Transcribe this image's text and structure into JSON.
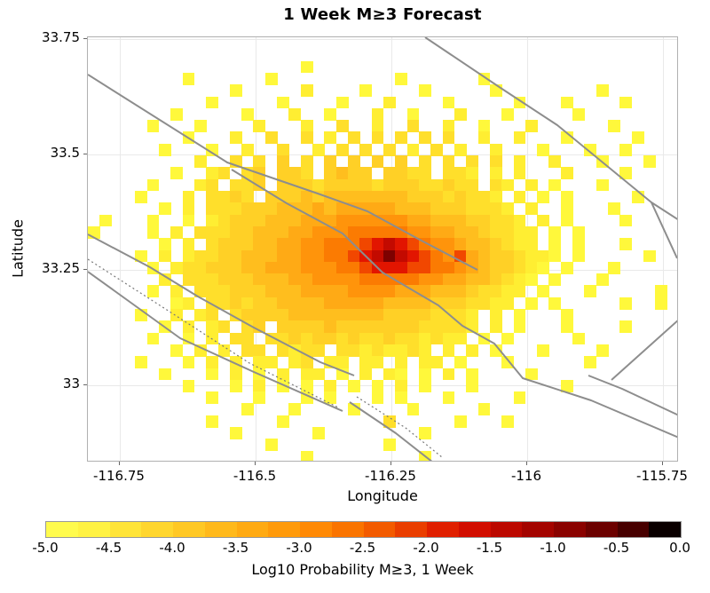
{
  "chart_data": {
    "type": "heatmap",
    "title": "1 Week M≥3 Forecast",
    "xlabel": "Longitude",
    "ylabel": "Latitude",
    "xlim": [
      -116.81,
      -115.72
    ],
    "ylim": [
      32.83,
      33.75
    ],
    "grid_on": true,
    "x_ticks": [
      {
        "label": "-116.75",
        "px": 36
      },
      {
        "label": "-116.5",
        "px": 189
      },
      {
        "label": "-116.25",
        "px": 342
      },
      {
        "label": "-116",
        "px": 495
      },
      {
        "label": "-115.75",
        "px": 648
      }
    ],
    "y_ticks": [
      {
        "label": "33.75",
        "px": 2
      },
      {
        "label": "33.5",
        "px": 132
      },
      {
        "label": "33.25",
        "px": 262
      },
      {
        "label": "33",
        "px": 392
      }
    ],
    "colorbar": {
      "label": "Log10 Probability M≥3, 1 Week",
      "range": [
        -5,
        0
      ],
      "tick_labels": [
        "-5.0",
        "-4.5",
        "-4.0",
        "-3.5",
        "-3.0",
        "-2.5",
        "-2.0",
        "-1.5",
        "-1.0",
        "-0.5",
        "0.0"
      ],
      "segment_colors": [
        "#FFFB4D",
        "#FFF243",
        "#FFE438",
        "#FFD62E",
        "#FFC824",
        "#FFB91B",
        "#FFAA12",
        "#FF9A0A",
        "#FF8904",
        "#FA7400",
        "#F35B00",
        "#EA3E00",
        "#E01F00",
        "#D20D00",
        "#BC0800",
        "#A40400",
        "#8A0200",
        "#6C0100",
        "#470000",
        "#0A0000"
      ]
    },
    "heatmap": {
      "ncols": 50,
      "nrows": 36,
      "note": "Each row string has 50 chars; '.' = no forecast cell (white); letters map to log10 probability buckets via palette.",
      "palette": {
        "a": {
          "value": -4.9,
          "color": "#FFF83B"
        },
        "b": {
          "value": -4.6,
          "color": "#FFEE32"
        },
        "c": {
          "value": -4.3,
          "color": "#FFDF2B"
        },
        "d": {
          "value": -4.0,
          "color": "#FFD026"
        },
        "e": {
          "value": -3.7,
          "color": "#FFBE1E"
        },
        "f": {
          "value": -3.4,
          "color": "#FFAA15"
        },
        "g": {
          "value": -3.1,
          "color": "#FF940B"
        },
        "h": {
          "value": -2.8,
          "color": "#FB7B02"
        },
        "i": {
          "value": -2.5,
          "color": "#F14700"
        },
        "j": {
          "value": -2.2,
          "color": "#E21500"
        },
        "k": {
          "value": -1.9,
          "color": "#C30A00"
        },
        "m": {
          "value": -1.3,
          "color": "#7E0100"
        }
      },
      "rows": [
        "..................................................",
        "..................................................",
        "..................a...............................",
        "........a......a..........a......a................",
        "............a.....b....a....a.....a........a......",
        "..........a.....a....a...b....a.....a...a....a....",
        ".......a.....a...b..a...b..a...b...a.....a........",
        ".....a...a....b...b..c..b..c..b..a...b......a.....",
        "........a...b..c..c.b.c.c.c.c.c..b..b...a.....a...",
        "......a...a..b..c..b.c.c.c.b.c.b..b...a...a..a....",
        ".........b..c.c.d.c.d.d.d.d.c.c.c.c.b..b...a...a..",
        ".......a..bc.cd.ddc.dedd.ddcc.ccb.b.b...b....a....",
        ".....a...bc.ccd.dddcddddcdddccdcc.cb.b.a...a......",
        "....a...b.ccdc.dddedeeeeeeedddcdccb.b.a.a.....a...",
        "......a.b.cccdddeeefefffffeeedddcccb.b..a...a.....",
        ".a...a..a.bcdddeeefffggggggffeeeddccb.b.a....a....",
        "a....a.b.cccddeeeffggghhhhhggffeedccbb.a.a........",
        "......a.b.cdddeeffgghhhijkjihggfeedcbb.a.a...a....",
        "....a.b.bccddeeeffgghhijkmkjihgifeddcbba.a.....a..",
        ".....a.bccdddeefffggghhijjjiihhgfeddcba.a...a.....",
        "......b.cccdddeeeffgggghhhhhggffeedcba.a...a......",
        ".....a.b.cccdddeeeffffggggfffeeedccbb.a...a.....a.",
        ".......ab.ccdcddeeeefffffeeeedddccbb.a.a.....a..a.",
        "....a..b.bc.cddddeeeeeeeeddddcccb.b.a...a.........",
        "......a.b.bc.cd.ddddedddddddccccb.b.a...a....a....",
        ".....a..a.b.cc.ccdcddcdccdccbcbb.a.a.....a........",
        ".......a.b.b.cc.cbcc.ccbcbbcb.b.b.a...a....a......",
        "....a...a.b.b.bb.bc.bb.bb.b.bb.a...a......a.......",
        "......a...a.b.a.b.bb.a.b.ba.a.b.a....a............",
        "........a...a.b.a.a.b.a.a.b.a...a.......a.........",
        "..........a...a...a.a...a.a...a.....a.............",
        ".............a...a....a....a.....a................",
        "..........a.....a........c.....a...a..............",
        "............a......a........a.....................",
        "...............a.........a........................",
        "..................a.........a....................."
      ]
    },
    "fault_lines": [
      {
        "name": "fault-ne-long",
        "style": "solid",
        "points": [
          [
            380,
            0
          ],
          [
            465,
            57
          ],
          [
            529,
            99
          ],
          [
            635,
            186
          ],
          [
            666,
            206
          ]
        ]
      },
      {
        "name": "fault-ne-branch",
        "style": "solid",
        "points": [
          [
            635,
            186
          ],
          [
            664,
            249
          ]
        ]
      },
      {
        "name": "fault-central-upper",
        "style": "solid",
        "points": [
          [
            0,
            42
          ],
          [
            157,
            141
          ],
          [
            259,
            176
          ],
          [
            315,
            196
          ],
          [
            372,
            227
          ],
          [
            439,
            262
          ]
        ]
      },
      {
        "name": "fault-central-lower",
        "style": "solid",
        "points": [
          [
            162,
            149
          ],
          [
            224,
            187
          ],
          [
            287,
            221
          ],
          [
            332,
            265
          ],
          [
            395,
            302
          ],
          [
            422,
            325
          ],
          [
            458,
            345
          ],
          [
            490,
            384
          ],
          [
            567,
            409
          ],
          [
            666,
            451
          ]
        ]
      },
      {
        "name": "fault-short-right",
        "style": "solid",
        "points": [
          [
            564,
            381
          ],
          [
            602,
            396
          ],
          [
            666,
            426
          ]
        ]
      },
      {
        "name": "fault-right-oblique",
        "style": "solid",
        "points": [
          [
            590,
            386
          ],
          [
            667,
            317
          ]
        ]
      },
      {
        "name": "fault-sw-upper",
        "style": "solid",
        "points": [
          [
            0,
            222
          ],
          [
            70,
            259
          ],
          [
            124,
            292
          ],
          [
            187,
            327
          ],
          [
            262,
            366
          ],
          [
            300,
            381
          ]
        ]
      },
      {
        "name": "fault-sw-lower",
        "style": "solid",
        "points": [
          [
            0,
            264
          ],
          [
            104,
            339
          ],
          [
            187,
            377
          ],
          [
            287,
            421
          ]
        ]
      },
      {
        "name": "fault-sw-dotted",
        "style": "dotted",
        "points": [
          [
            0,
            250
          ],
          [
            92,
            309
          ],
          [
            182,
            367
          ],
          [
            282,
            417
          ]
        ]
      },
      {
        "name": "fault-echelon-solid",
        "style": "solid",
        "points": [
          [
            295,
            411
          ],
          [
            347,
            446
          ],
          [
            389,
            479
          ]
        ]
      },
      {
        "name": "fault-echelon-dotted",
        "style": "dotted",
        "points": [
          [
            303,
            405
          ],
          [
            358,
            440
          ],
          [
            399,
            473
          ]
        ]
      }
    ]
  }
}
